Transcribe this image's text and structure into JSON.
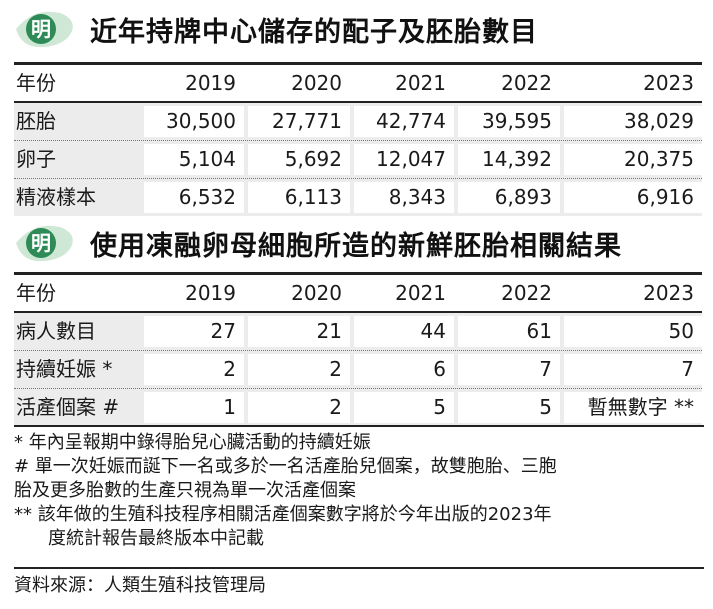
{
  "section1": {
    "logo_char": "明",
    "title": "近年持牌中心儲存的配子及胚胎數目",
    "header": [
      "年份",
      "2019",
      "2020",
      "2021",
      "2022",
      "2023"
    ],
    "rows": [
      {
        "label": "胚胎",
        "values": [
          "30,500",
          "27,771",
          "42,774",
          "39,595",
          "38,029"
        ]
      },
      {
        "label": "卵子",
        "values": [
          "5,104",
          "5,692",
          "12,047",
          "14,392",
          "20,375"
        ]
      },
      {
        "label": "精液樣本",
        "values": [
          "6,532",
          "6,113",
          "8,343",
          "6,893",
          "6,916"
        ]
      }
    ]
  },
  "section2": {
    "logo_char": "明",
    "title": "使用凍融卵母細胞所造的新鮮胚胎相關結果",
    "header": [
      "年份",
      "2019",
      "2020",
      "2021",
      "2022",
      "2023"
    ],
    "rows": [
      {
        "label": "病人數目",
        "values": [
          "27",
          "21",
          "44",
          "61",
          "50"
        ]
      },
      {
        "label": "持續妊娠 *",
        "values": [
          "2",
          "2",
          "6",
          "7",
          "7"
        ]
      },
      {
        "label": "活產個案 #",
        "values": [
          "1",
          "2",
          "5",
          "5",
          "暫無數字 **"
        ]
      }
    ]
  },
  "notes": [
    {
      "line1": "* 年內呈報期中錄得胎兒心臟活動的持續妊娠",
      "line2": ""
    },
    {
      "line1": "# 單一次妊娠而誕下一名或多於一名活產胎兒個案，故雙胞胎、三胞",
      "line2": "胎及更多胎數的生產只視為單一次活產個案"
    },
    {
      "line1": "** 該年做的生殖科技程序相關活產個案數字將於今年出版的2023年",
      "line2": "度統計報告最終版本中記載"
    }
  ],
  "source": "資料來源：人類生殖科技管理局",
  "colors": {
    "logo_green": "#2e8b57",
    "logo_light": "#cfe8d6",
    "table_bg": "#ececec"
  }
}
